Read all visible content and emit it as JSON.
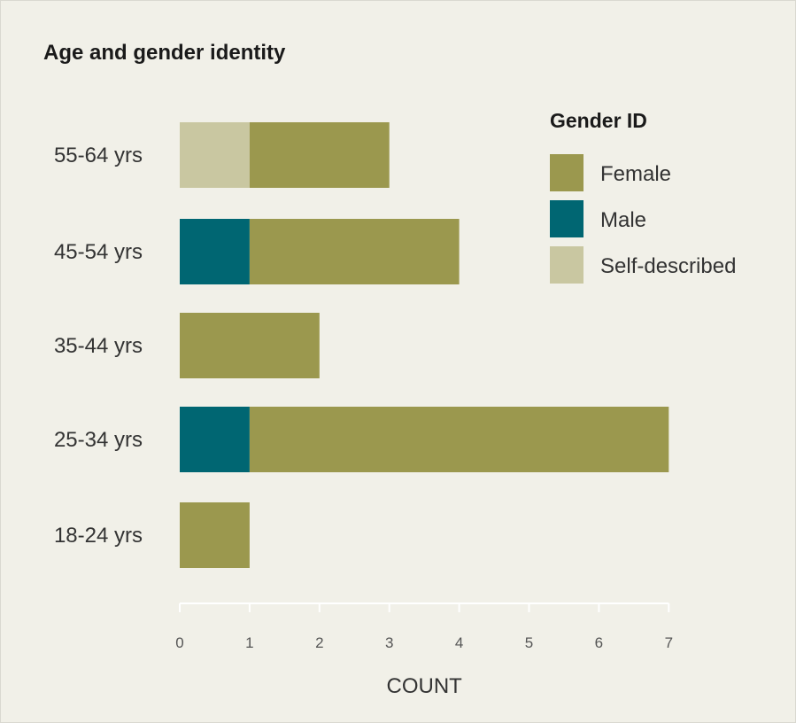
{
  "chart_data": {
    "type": "bar",
    "orientation": "horizontal",
    "stacked": true,
    "title": "Age and gender identity",
    "xlabel": "COUNT",
    "ylabel": "",
    "xlim": [
      0,
      7
    ],
    "xticks": [
      "0",
      "1",
      "2",
      "3",
      "4",
      "5",
      "6",
      "7"
    ],
    "categories": [
      "55-64 yrs",
      "45-54 yrs",
      "35-44 yrs",
      "25-34 yrs",
      "18-24 yrs"
    ],
    "series": [
      {
        "name": "Self-described",
        "color": "#c9c7a1",
        "values": [
          1,
          0,
          0,
          0,
          0
        ]
      },
      {
        "name": "Male",
        "color": "#006672",
        "values": [
          0,
          1,
          0,
          1,
          0
        ]
      },
      {
        "name": "Female",
        "color": "#9b984e",
        "values": [
          2,
          3,
          2,
          6,
          1
        ]
      }
    ],
    "legend": {
      "title": "Gender ID",
      "position": "top-right",
      "entries": [
        "Female",
        "Male",
        "Self-described"
      ]
    },
    "grid": false
  }
}
